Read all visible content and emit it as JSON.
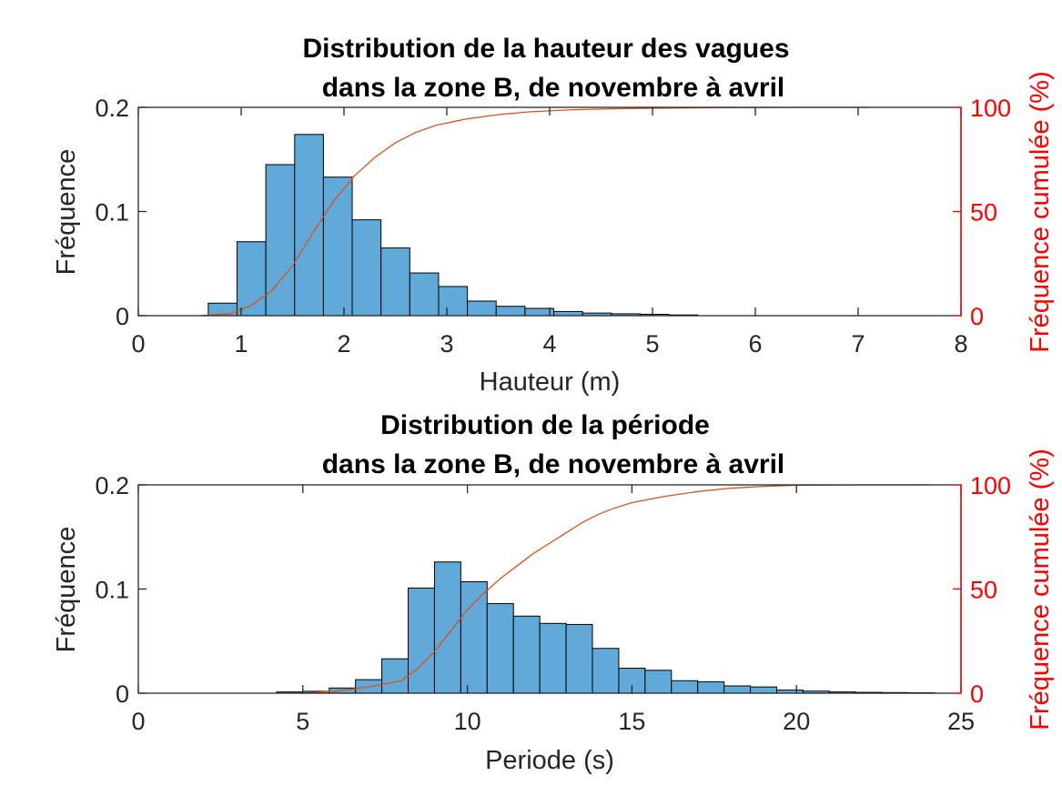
{
  "chart_data": [
    {
      "type": "bar",
      "title": [
        "Distribution de la hauteur des vagues",
        "dans la zone B, de novembre à avril"
      ],
      "xlabel": "Hauteur (m)",
      "ylabel": "Fréquence",
      "ylabel_right": "Fréquence cumulée (%)",
      "xlim": [
        0,
        8
      ],
      "ylim": [
        0,
        0.2
      ],
      "ylim_right": [
        0,
        100
      ],
      "xticks": [
        0,
        1,
        2,
        3,
        4,
        5,
        6,
        7,
        8
      ],
      "xtick_labels": [
        "0",
        "1",
        "2",
        "3",
        "4",
        "5",
        "6",
        "7",
        "8"
      ],
      "yticks": [
        0,
        0.1,
        0.2
      ],
      "ytick_labels": [
        "0",
        "0.1",
        "0.2"
      ],
      "yticks_right": [
        0,
        50,
        100
      ],
      "ytick_labels_right": [
        "0",
        "50",
        "100"
      ],
      "bin_edges": [
        0.68,
        0.96,
        1.24,
        1.52,
        1.8,
        2.08,
        2.36,
        2.64,
        2.92,
        3.2,
        3.48,
        3.76,
        4.04,
        4.32,
        4.6,
        4.88,
        5.16,
        5.44
      ],
      "values": [
        0.012,
        0.071,
        0.145,
        0.174,
        0.133,
        0.092,
        0.065,
        0.041,
        0.028,
        0.014,
        0.009,
        0.007,
        0.004,
        0.0025,
        0.0018,
        0.0013,
        0.0007
      ],
      "cumulative": {
        "x": [
          0.6,
          0.9,
          1.1,
          1.3,
          1.5,
          1.7,
          1.9,
          2.1,
          2.3,
          2.5,
          2.7,
          2.9,
          3.2,
          3.5,
          3.8,
          4.2,
          4.6,
          5.0,
          5.5,
          6.0,
          6.5,
          7.1
        ],
        "y": [
          0,
          1,
          5,
          12,
          24,
          40,
          55,
          67,
          76,
          83,
          88,
          91.5,
          94.5,
          96.5,
          97.8,
          98.8,
          99.3,
          99.6,
          99.8,
          99.9,
          100,
          100
        ]
      },
      "colors": {
        "bars": "#61a9d8",
        "bar_edge": "#000000",
        "cumulative_line": "#d95319",
        "right_axis": "#ff0000"
      }
    },
    {
      "type": "bar",
      "title": [
        "Distribution de la période",
        "dans la zone B, de novembre à avril"
      ],
      "xlabel": "Periode (s)",
      "ylabel": "Fréquence",
      "ylabel_right": "Fréquence cumulée (%)",
      "xlim": [
        0,
        25
      ],
      "ylim": [
        0,
        0.2
      ],
      "ylim_right": [
        0,
        100
      ],
      "xticks": [
        0,
        5,
        10,
        15,
        20,
        25
      ],
      "xtick_labels": [
        "0",
        "5",
        "10",
        "15",
        "20",
        "25"
      ],
      "yticks": [
        0,
        0.1,
        0.2
      ],
      "ytick_labels": [
        "0",
        "0.1",
        "0.2"
      ],
      "yticks_right": [
        0,
        50,
        100
      ],
      "ytick_labels_right": [
        "0",
        "50",
        "100"
      ],
      "bin_edges": [
        4.2,
        5.0,
        5.8,
        6.6,
        7.4,
        8.2,
        9.0,
        9.8,
        10.6,
        11.4,
        12.2,
        13.0,
        13.8,
        14.6,
        15.4,
        16.2,
        17.0,
        17.8,
        18.6,
        19.4,
        20.2,
        21.0,
        21.8,
        22.6,
        23.4,
        24.2
      ],
      "values": [
        0.0012,
        0.0018,
        0.005,
        0.013,
        0.033,
        0.101,
        0.126,
        0.107,
        0.086,
        0.074,
        0.067,
        0.066,
        0.043,
        0.024,
        0.022,
        0.012,
        0.011,
        0.007,
        0.006,
        0.003,
        0.002,
        0.0012,
        0.0008,
        0.0006,
        0.0004
      ],
      "cumulative": {
        "x": [
          5.0,
          6.0,
          7.0,
          8.0,
          8.5,
          9.0,
          9.5,
          10.0,
          10.5,
          11.0,
          11.5,
          12.0,
          12.5,
          13.0,
          13.5,
          14.0,
          14.5,
          15.0,
          16.0,
          17.0,
          18.0,
          19.0,
          20.0,
          22.0,
          24.0
        ],
        "y": [
          0,
          1,
          3,
          6,
          12,
          20,
          30,
          40,
          48,
          55,
          61,
          67,
          72,
          77,
          82,
          86,
          89,
          91.5,
          94.5,
          96.8,
          98.4,
          99.3,
          99.8,
          100,
          100
        ]
      },
      "colors": {
        "bars": "#61a9d8",
        "bar_edge": "#000000",
        "cumulative_line": "#d95319",
        "right_axis": "#ff0000"
      }
    }
  ]
}
